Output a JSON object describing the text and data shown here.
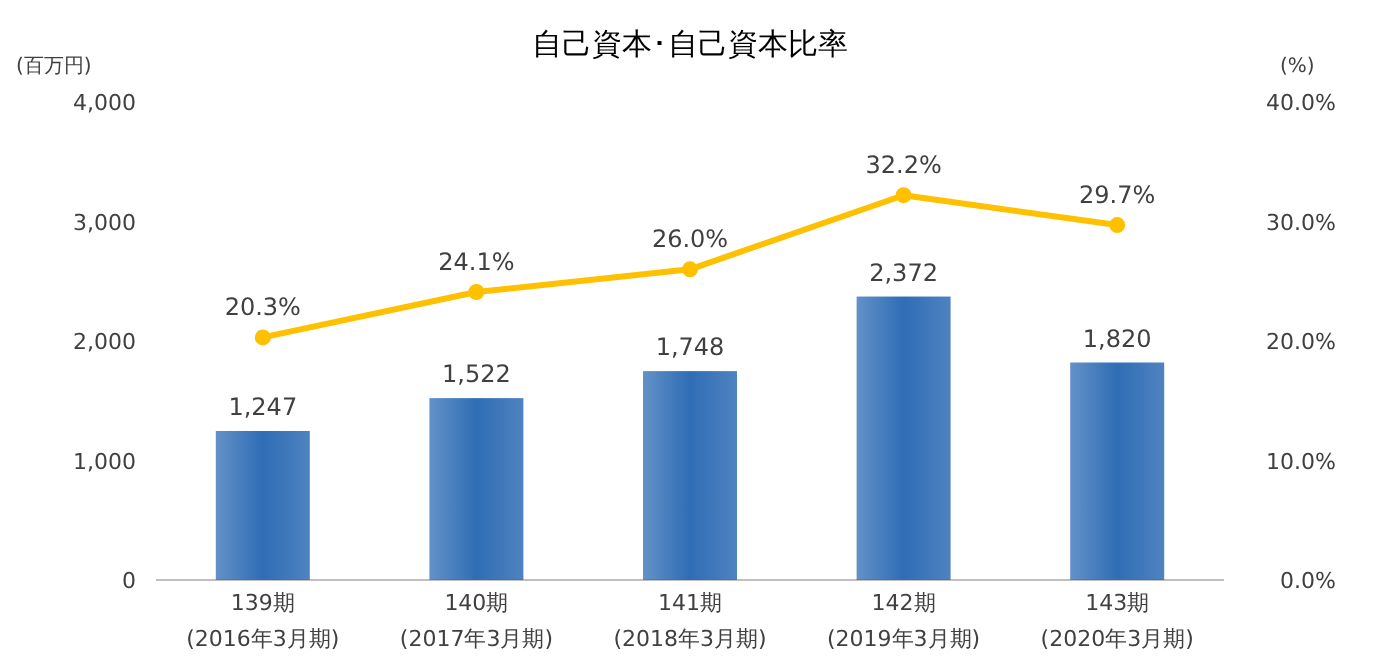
{
  "chart_data": {
    "type": "bar",
    "title": "自己資本･自己資本比率",
    "ylabel": "(百万円)",
    "y2label": "(%)",
    "categories": [
      "139期\n(2016年3月期)",
      "140期\n(2017年3月期)",
      "141期\n(2018年3月期)",
      "142期\n(2019年3月期)",
      "143期\n(2020年3月期)"
    ],
    "series": [
      {
        "color": "#2f6db5",
        "values": [
          1247,
          1522,
          1748,
          2372,
          1820
        ],
        "value_labels": [
          "1,247",
          "1,522",
          "1,748",
          "2,372",
          "1,820"
        ]
      },
      {
        "type": "line",
        "axis": "y2",
        "color": "#ffc000",
        "marker": "circle",
        "values": [
          20.3,
          24.1,
          26.0,
          32.2,
          29.7
        ],
        "value_labels": [
          "20.3%",
          "24.1%",
          "26.0%",
          "32.2%",
          "29.7%"
        ]
      }
    ],
    "ylim": [
      0,
      4000
    ],
    "yticks": [
      {
        "value": 0,
        "label": "0"
      },
      {
        "value": 1000,
        "label": "1,000"
      },
      {
        "value": 2000,
        "label": "2,000"
      },
      {
        "value": 3000,
        "label": "3,000"
      },
      {
        "value": 4000,
        "label": "4,000"
      }
    ],
    "y2lim": [
      0,
      40
    ],
    "y2ticks": [
      {
        "value": 0,
        "label": "0.0%"
      },
      {
        "value": 10,
        "label": "10.0%"
      },
      {
        "value": 20,
        "label": "20.0%"
      },
      {
        "value": 30,
        "label": "30.0%"
      },
      {
        "value": 40,
        "label": "40.0%"
      }
    ],
    "grid": false
  }
}
